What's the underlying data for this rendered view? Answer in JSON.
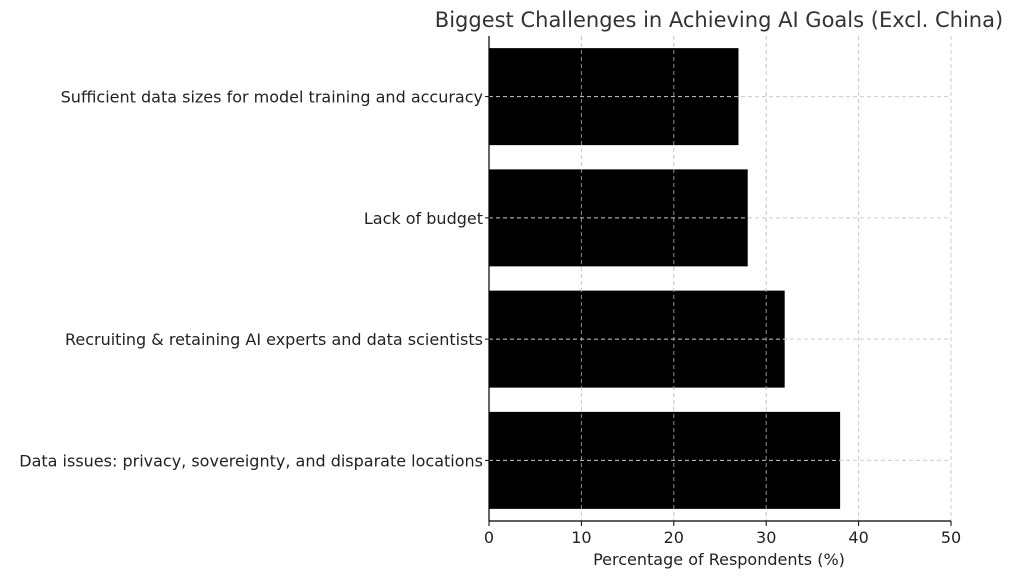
{
  "chart_data": {
    "type": "bar",
    "orientation": "horizontal",
    "title": "Biggest Challenges in Achieving AI Goals (Excl. China)",
    "xlabel": "Percentage of Respondents (%)",
    "ylabel": "",
    "categories": [
      "Data issues: privacy, sovereignty, and disparate locations",
      "Recruiting & retaining AI experts and data scientists",
      "Lack of budget",
      "Sufficient data sizes for model training and accuracy"
    ],
    "values": [
      38,
      32,
      28,
      27
    ],
    "xlim": [
      0,
      50
    ],
    "xticks": [
      "0",
      "10",
      "20",
      "30",
      "40",
      "50"
    ],
    "grid": true,
    "bar_color": "#000000",
    "grid_color": "#cccccc"
  }
}
